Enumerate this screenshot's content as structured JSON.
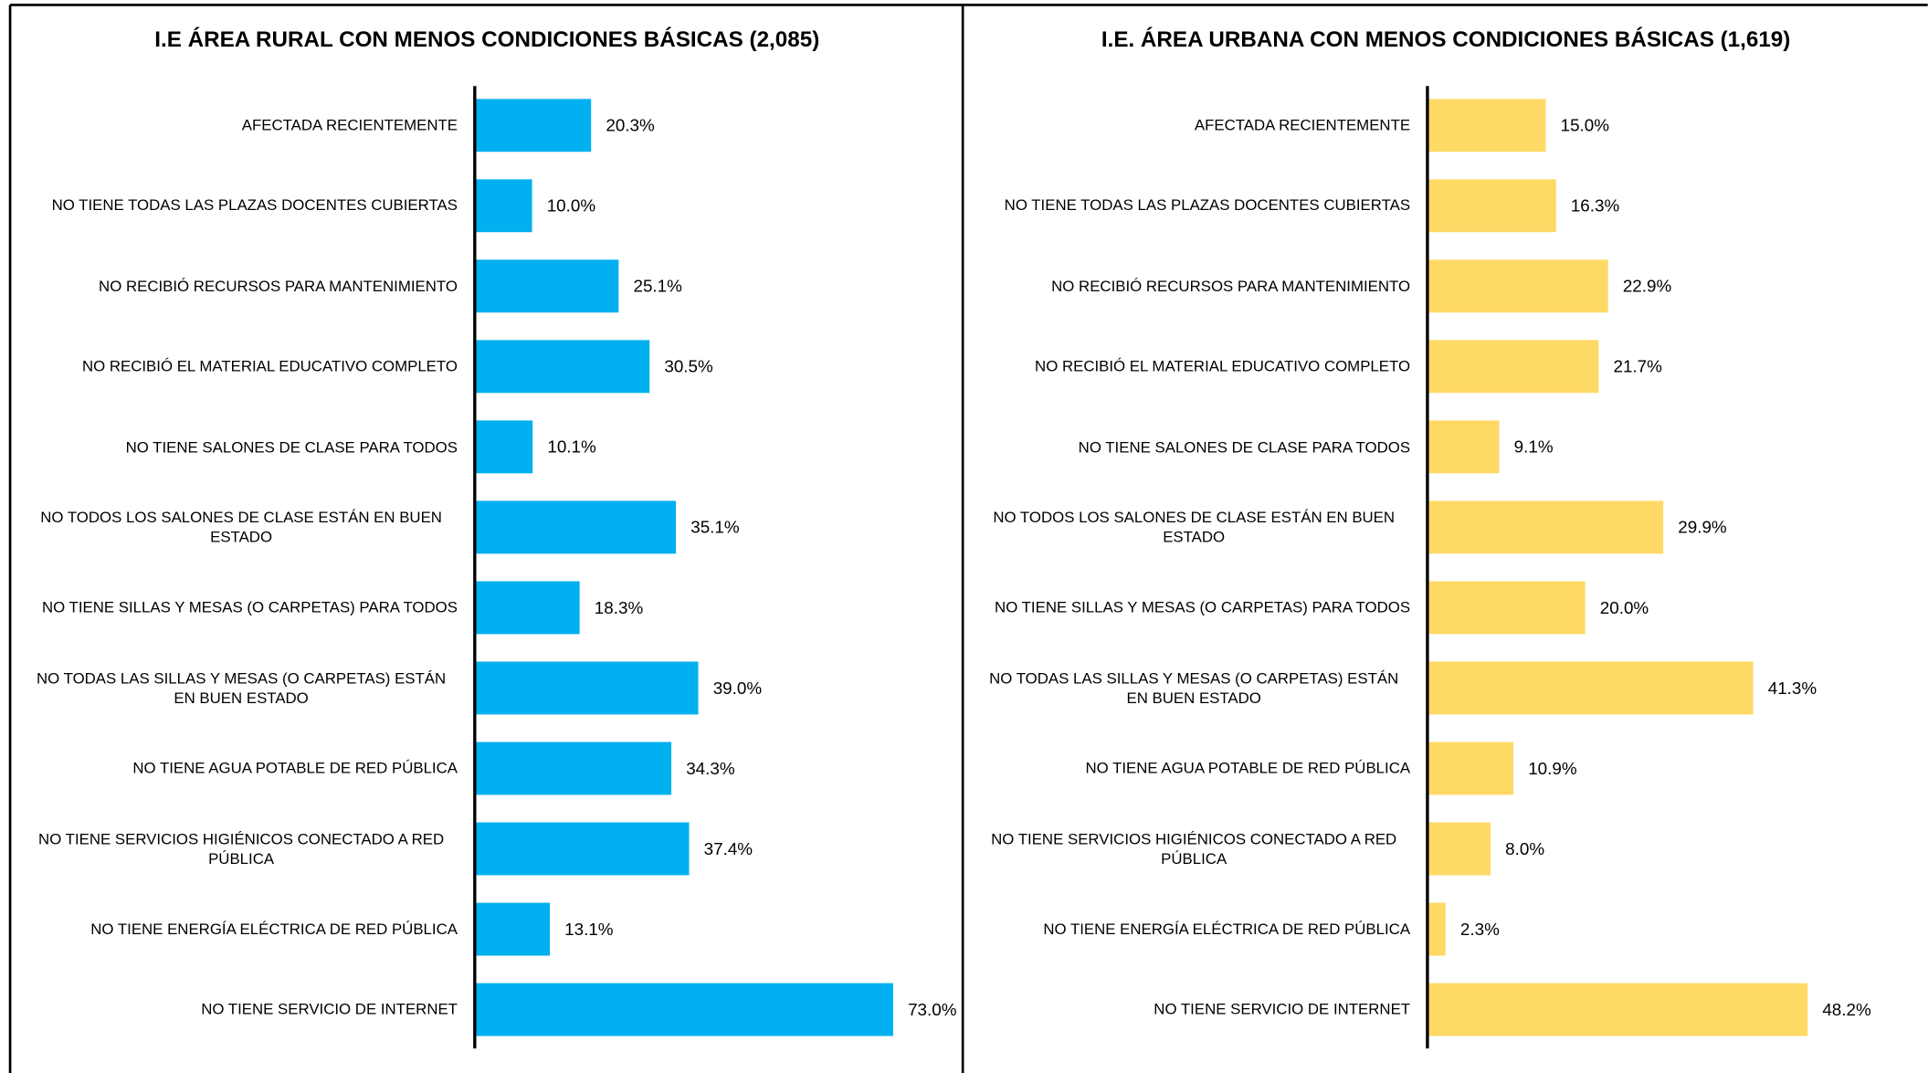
{
  "chart_data": [
    {
      "type": "barh",
      "title": "I.E ÁREA RURAL CON MENOS CONDICIONES BÁSICAS (2,085)",
      "categories": [
        "AFECTADA RECIENTEMENTE",
        "NO TIENE TODAS LAS PLAZAS DOCENTES CUBIERTAS",
        "NO RECIBIÓ RECURSOS PARA MANTENIMIENTO",
        "NO RECIBIÓ EL MATERIAL EDUCATIVO COMPLETO",
        "NO TIENE SALONES DE CLASE PARA TODOS",
        "NO TODOS LOS SALONES DE CLASE ESTÁN EN BUEN ESTADO",
        "NO TIENE SILLAS Y MESAS (O CARPETAS) PARA TODOS",
        "NO TODAS LAS SILLAS Y MESAS (O CARPETAS) ESTÁN EN BUEN ESTADO",
        "NO TIENE AGUA POTABLE DE RED PÚBLICA",
        "NO TIENE SERVICIOS HIGIÉNICOS CONECTADO A RED PÚBLICA",
        "NO TIENE ENERGÍA ELÉCTRICA DE RED PÚBLICA",
        "NO TIENE SERVICIO DE INTERNET"
      ],
      "values": [
        20.3,
        10.0,
        25.1,
        30.5,
        10.1,
        35.1,
        18.3,
        39.0,
        34.3,
        37.4,
        13.1,
        73.0
      ],
      "value_labels": [
        "20.3%",
        "10.0%",
        "25.1%",
        "30.5%",
        "10.1%",
        "35.1%",
        "18.3%",
        "39.0%",
        "34.3%",
        "37.4%",
        "13.1%",
        "73.0%"
      ],
      "color": "#00b0f0",
      "xlim": [
        0,
        80
      ]
    },
    {
      "type": "barh",
      "title": "I.E. ÁREA URBANA CON MENOS CONDICIONES BÁSICAS (1,619)",
      "categories": [
        "AFECTADA RECIENTEMENTE",
        "NO TIENE TODAS LAS PLAZAS DOCENTES CUBIERTAS",
        "NO RECIBIÓ RECURSOS PARA MANTENIMIENTO",
        "NO RECIBIÓ EL MATERIAL EDUCATIVO COMPLETO",
        "NO TIENE SALONES DE CLASE PARA TODOS",
        "NO TODOS LOS SALONES DE CLASE ESTÁN EN BUEN ESTADO",
        "NO TIENE SILLAS Y MESAS (O CARPETAS) PARA TODOS",
        "NO TODAS LAS SILLAS Y MESAS (O CARPETAS) ESTÁN EN BUEN ESTADO",
        "NO TIENE AGUA POTABLE DE RED PÚBLICA",
        "NO TIENE SERVICIOS HIGIÉNICOS CONECTADO A RED PÚBLICA",
        "NO TIENE ENERGÍA ELÉCTRICA DE RED PÚBLICA",
        "NO TIENE SERVICIO DE INTERNET"
      ],
      "values": [
        15.0,
        16.3,
        22.9,
        21.7,
        9.1,
        29.9,
        20.0,
        41.3,
        10.9,
        8.0,
        2.3,
        48.2
      ],
      "value_labels": [
        "15.0%",
        "16.3%",
        "22.9%",
        "21.7%",
        "9.1%",
        "29.9%",
        "20.0%",
        "41.3%",
        "10.9%",
        "8.0%",
        "2.3%",
        "48.2%"
      ],
      "color": "#ffd966",
      "xlim": [
        0,
        60
      ]
    }
  ]
}
